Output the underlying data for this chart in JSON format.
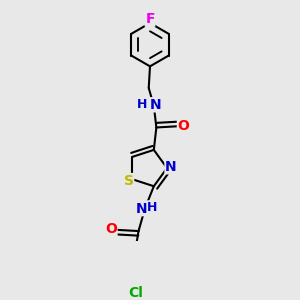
{
  "background_color": "#e8e8e8",
  "bond_color": "#000000",
  "bond_width": 1.5,
  "dbo": 0.018,
  "atom_colors": {
    "N": "#0000cc",
    "O": "#ff0000",
    "S": "#bbbb00",
    "Cl": "#00aa00",
    "F": "#ee00ee",
    "C": "#000000",
    "H": "#555555"
  },
  "font_size": 9.5,
  "fig_width": 3.0,
  "fig_height": 3.0,
  "dpi": 100
}
